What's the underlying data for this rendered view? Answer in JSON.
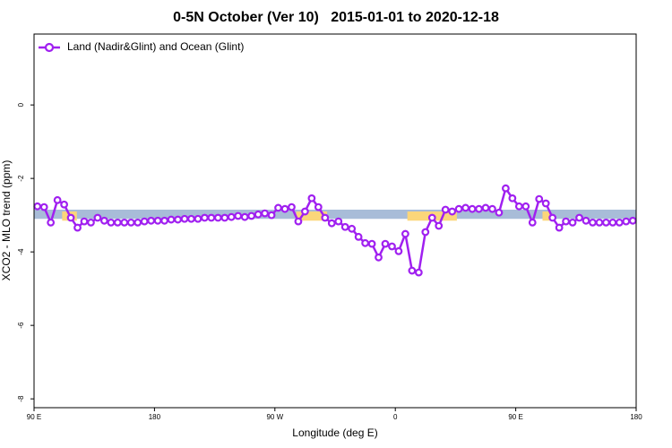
{
  "chart_data": {
    "type": "line",
    "title": "0-5N October (Ver 10)   2015-01-01 to 2020-12-18",
    "xlabel": "Longitude (deg E)",
    "ylabel": "XCO2 - MLO trend (ppm)",
    "xlim": [
      90,
      540
    ],
    "ylim": [
      -8.24,
      1.93
    ],
    "xticks": [
      {
        "value": 90,
        "label": "90 E"
      },
      {
        "value": 180,
        "label": "180"
      },
      {
        "value": 270,
        "label": "90 W"
      },
      {
        "value": 360,
        "label": "0"
      },
      {
        "value": 450,
        "label": "90 E"
      },
      {
        "value": 540,
        "label": "180"
      }
    ],
    "yticks": [
      -8,
      -6,
      -4,
      -2,
      0
    ],
    "legend": "upper left",
    "bands": [
      {
        "x": [
          90,
          540
        ],
        "y": [
          -2.85,
          -3.1
        ],
        "color": "#a8bcd8"
      },
      {
        "x": [
          111,
          122
        ],
        "y": [
          -2.9,
          -3.15
        ],
        "color": "#fbd67a"
      },
      {
        "x": [
          286,
          309
        ],
        "y": [
          -2.9,
          -3.15
        ],
        "color": "#fbd67a"
      },
      {
        "x": [
          369,
          406
        ],
        "y": [
          -2.9,
          -3.15
        ],
        "color": "#fbd67a"
      },
      {
        "x": [
          470,
          476
        ],
        "y": [
          -2.9,
          -3.15
        ],
        "color": "#fbd67a"
      }
    ],
    "x": [
      92.5,
      97.5,
      102.5,
      107.5,
      112.5,
      117.5,
      122.5,
      127.5,
      132.5,
      137.5,
      142.5,
      147.5,
      152.5,
      157.5,
      162.5,
      167.5,
      172.5,
      177.5,
      182.5,
      187.5,
      192.5,
      197.5,
      202.5,
      207.5,
      212.5,
      217.5,
      222.5,
      227.5,
      232.5,
      237.5,
      242.5,
      247.5,
      252.5,
      257.5,
      262.5,
      267.5,
      272.5,
      277.5,
      282.5,
      287.5,
      292.5,
      297.5,
      302.5,
      307.5,
      312.5,
      317.5,
      322.5,
      327.5,
      332.5,
      337.5,
      342.5,
      347.5,
      352.5,
      357.5,
      362.5,
      367.5,
      372.5,
      377.5,
      382.5,
      387.5,
      392.5,
      397.5,
      402.5,
      407.5,
      412.5,
      417.5,
      422.5,
      427.5,
      432.5,
      437.5,
      442.5,
      447.5,
      452.5,
      457.5,
      462.5,
      467.5,
      472.5,
      477.5,
      482.5,
      487.5,
      492.5,
      497.5,
      502.5,
      507.5,
      512.5,
      517.5,
      522.5,
      527.5,
      532.5,
      537.5
    ],
    "series": [
      {
        "name": "Land (Nadir&Glint) and Ocean (Glint)",
        "color": "#a020f0",
        "values": [
          -2.76,
          -2.78,
          -3.2,
          -2.59,
          -2.71,
          -3.07,
          -3.34,
          -3.17,
          -3.2,
          -3.07,
          -3.15,
          -3.2,
          -3.2,
          -3.2,
          -3.2,
          -3.2,
          -3.17,
          -3.15,
          -3.15,
          -3.15,
          -3.12,
          -3.12,
          -3.1,
          -3.1,
          -3.1,
          -3.07,
          -3.07,
          -3.07,
          -3.07,
          -3.05,
          -3.02,
          -3.05,
          -3.02,
          -2.98,
          -2.95,
          -3.0,
          -2.8,
          -2.83,
          -2.78,
          -3.17,
          -2.9,
          -2.54,
          -2.78,
          -3.07,
          -3.22,
          -3.17,
          -3.32,
          -3.37,
          -3.59,
          -3.76,
          -3.78,
          -4.15,
          -3.78,
          -3.85,
          -3.98,
          -3.51,
          -4.51,
          -4.56,
          -3.46,
          -3.07,
          -3.29,
          -2.85,
          -2.9,
          -2.83,
          -2.8,
          -2.83,
          -2.83,
          -2.8,
          -2.83,
          -2.93,
          -2.27,
          -2.54,
          -2.76,
          -2.76,
          -3.2,
          -2.56,
          -2.68,
          -3.07,
          -3.34,
          -3.17,
          -3.2,
          -3.07,
          -3.15,
          -3.2,
          -3.2,
          -3.2,
          -3.2,
          -3.2,
          -3.17,
          -3.15
        ]
      }
    ]
  }
}
